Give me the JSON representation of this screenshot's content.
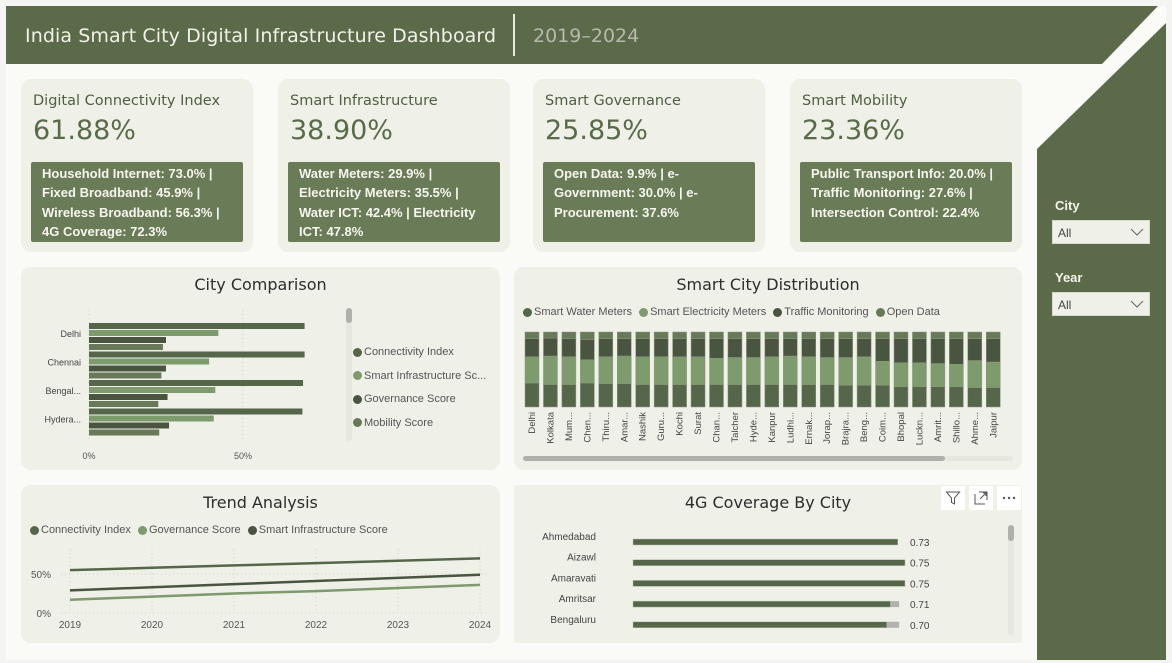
{
  "header": {
    "title": "India Smart City Digital Infrastructure Dashboard",
    "subtitle": "2019–2024"
  },
  "colors": {
    "brand": "#5b6b4a",
    "card_bg": "#eff0e8",
    "kpi_box": "#6a7b58",
    "series_1": "#56664a",
    "series_2": "#7d9b6c",
    "series_3": "#4a5541",
    "series_4": "#68795a"
  },
  "kpis": [
    {
      "title": "Digital Connectivity Index",
      "value": "61.88%",
      "detail": "Household Internet: 73.0% | Fixed Broadband: 45.9% | Wireless Broadband: 56.3% | 4G Coverage: 72.3%"
    },
    {
      "title": "Smart Infrastructure",
      "value": "38.90%",
      "detail": "Water Meters: 29.9% | Electricity Meters: 35.5% | Water ICT: 42.4% | Electricity ICT: 47.8%"
    },
    {
      "title": "Smart Governance",
      "value": "25.85%",
      "detail": "Open Data: 9.9% | e-Government: 30.0% | e-Procurement: 37.6%"
    },
    {
      "title": "Smart Mobility",
      "value": "23.36%",
      "detail": "Public Transport Info: 20.0% | Traffic Monitoring: 27.6% | Intersection Control: 22.4%"
    }
  ],
  "slicers": [
    {
      "label": "City",
      "value": "All",
      "icon": "chevron-down-icon"
    },
    {
      "label": "Year",
      "value": "All",
      "icon": "chevron-down-icon"
    }
  ],
  "visual_header_icons": [
    "filter-icon",
    "focus-mode-icon",
    "more-options-icon"
  ],
  "chart_data": [
    {
      "type": "bar",
      "orientation": "horizontal",
      "title": "City Comparison",
      "categories": [
        "Delhi",
        "Chennai",
        "Bengal...",
        "Hydera..."
      ],
      "series": [
        {
          "name": "Connectivity Index",
          "values": [
            70,
            70,
            69.5,
            69.3
          ]
        },
        {
          "name": "Smart Infrastructure Sc...",
          "values": [
            42,
            39,
            41,
            40.5
          ]
        },
        {
          "name": "Governance Score",
          "values": [
            25,
            25,
            25.5,
            26
          ]
        },
        {
          "name": "Mobility Score",
          "values": [
            24,
            23.5,
            22.5,
            22.8
          ]
        }
      ],
      "xtick_labels": [
        "0%",
        "50%"
      ],
      "xlim": [
        0,
        100
      ],
      "legend": "right"
    },
    {
      "type": "bar",
      "stacked": "100%",
      "title": "Smart City Distribution",
      "categories": [
        "Delhi",
        "Kolkata",
        "Mum...",
        "Chen...",
        "Thiru...",
        "Amar...",
        "Nashik",
        "Guru...",
        "Kochi",
        "Surat",
        "Chan...",
        "Talcher",
        "Hyde...",
        "Kanpur",
        "Ludhi...",
        "Ernak...",
        "Jorap...",
        "Brajra...",
        "Beng...",
        "Coim...",
        "Bhopal",
        "Luckn...",
        "Amrit...",
        "Shillo...",
        "Ahme...",
        "Jaipur"
      ],
      "series": [
        {
          "name": "Smart Water Meters",
          "values": [
            32,
            30,
            30,
            32,
            31,
            31,
            30,
            30,
            30,
            30,
            30,
            30,
            30,
            30,
            30,
            30,
            30,
            29,
            29,
            29,
            27,
            27,
            27,
            27,
            26,
            26
          ]
        },
        {
          "name": "Smart Electricity Meters",
          "values": [
            35,
            38,
            37,
            31,
            36,
            37,
            37,
            37,
            37,
            37,
            35,
            36,
            36,
            37,
            38,
            37,
            36,
            37,
            38,
            32,
            32,
            32,
            31,
            30,
            36,
            34
          ]
        },
        {
          "name": "Traffic Monitoring",
          "values": [
            24,
            24,
            24,
            27,
            24,
            23,
            24,
            24,
            24,
            24,
            26,
            25,
            25,
            24,
            23,
            24,
            25,
            25,
            24,
            30,
            32,
            32,
            33,
            34,
            29,
            31
          ]
        },
        {
          "name": "Open Data",
          "values": [
            9,
            8,
            9,
            10,
            9,
            9,
            9,
            9,
            9,
            9,
            9,
            9,
            9,
            9,
            9,
            9,
            9,
            9,
            9,
            9,
            9,
            9,
            9,
            9,
            9,
            9
          ]
        }
      ],
      "ylim": [
        0,
        100
      ],
      "legend": "top-left"
    },
    {
      "type": "line",
      "title": "Trend Analysis",
      "x": [
        "2019",
        "2020",
        "2021",
        "2022",
        "2023",
        "2024"
      ],
      "series": [
        {
          "name": "Connectivity Index",
          "values": [
            55,
            58,
            61,
            64,
            67,
            70
          ]
        },
        {
          "name": "Governance Score",
          "values": [
            17,
            21,
            25,
            28,
            32,
            36
          ]
        },
        {
          "name": "Smart Infrastructure Score",
          "values": [
            29,
            33,
            37,
            41,
            45,
            49
          ]
        }
      ],
      "ytick_labels": [
        "0%",
        "50%"
      ],
      "ylim": [
        0,
        80
      ],
      "legend": "top-left"
    },
    {
      "type": "bar",
      "orientation": "horizontal",
      "title": "4G Coverage By City",
      "categories": [
        "Ahmedabad",
        "Aizawl",
        "Amaravati",
        "Amritsar",
        "Bengaluru"
      ],
      "values": [
        0.73,
        0.75,
        0.75,
        0.71,
        0.7
      ],
      "data_labels": [
        "0.73",
        "0.75",
        "0.75",
        "0.71",
        "0.70"
      ],
      "target": 0.72,
      "xlim": [
        0,
        0.75
      ]
    }
  ]
}
